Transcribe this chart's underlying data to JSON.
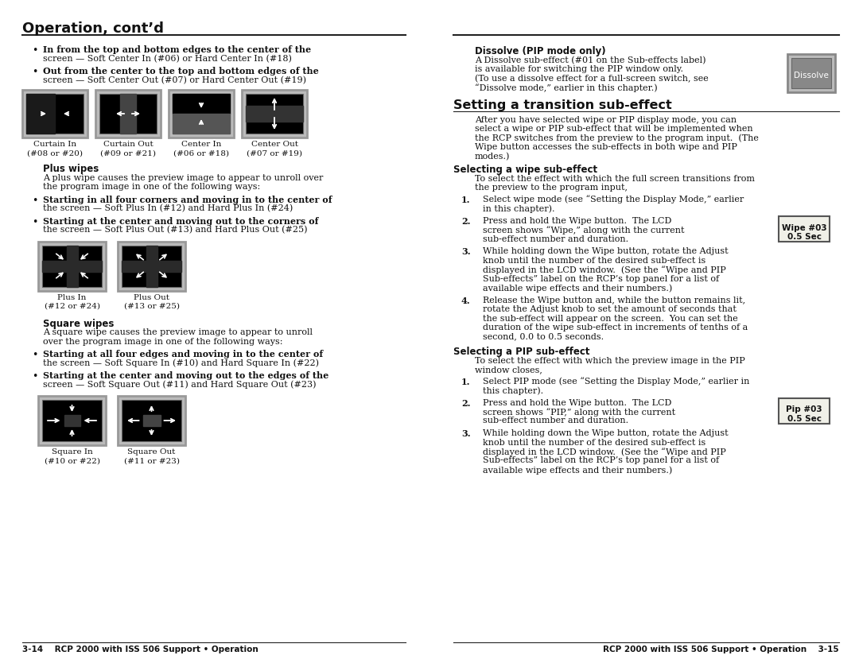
{
  "page_bg": "#ffffff",
  "left_header": "Operation, cont’d",
  "footer_left": "3-14    RCP 2000 with ISS 506 Support • Operation",
  "footer_right": "RCP 2000 with ISS 506 Support • Operation    3-15",
  "left_column": {
    "bullet1_bold": "In from the top and bottom edges to the center of the",
    "bullet1_normal": "screen — Soft Center In (#06) or Hard Center In (#18)",
    "bullet2_bold": "Out from the center to the top and bottom edges of the",
    "bullet2_normal": "screen — Soft Center Out (#07) or Hard Center Out (#19)",
    "wipe_images": [
      {
        "label": "Curtain In",
        "sub": "(#08 or #20)"
      },
      {
        "label": "Curtain Out",
        "sub": "(#09 or #21)"
      },
      {
        "label": "Center In",
        "sub": "(#06 or #18)"
      },
      {
        "label": "Center Out",
        "sub": "(#07 or #19)"
      }
    ],
    "plus_wipes_header": "Plus wipes",
    "plus_wipes_body1": "A plus wipe causes the preview image to appear to unroll over",
    "plus_wipes_body2": "the program image in one of the following ways:",
    "plus_bullet1_bold": "Starting in all four corners and moving in to the center of",
    "plus_bullet1_normal": "the screen — Soft Plus In (#12) and Hard Plus In (#24)",
    "plus_bullet2_bold": "Starting at the center and moving out to the corners of",
    "plus_bullet2_normal": "the screen — Soft Plus Out (#13) and Hard Plus Out (#25)",
    "plus_images": [
      {
        "label": "Plus In",
        "sub": "(#12 or #24)"
      },
      {
        "label": "Plus Out",
        "sub": "(#13 or #25)"
      }
    ],
    "square_wipes_header": "Square wipes",
    "square_body1": "A square wipe causes the preview image to appear to unroll",
    "square_body2": "over the program image in one of the following ways:",
    "sq_bullet1_bold": "Starting at all four edges and moving in to the center of",
    "sq_bullet1_normal": "the screen — Soft Square In (#10) and Hard Square In (#22)",
    "sq_bullet2_bold": "Starting at the center and moving out to the edges of the",
    "sq_bullet2_normal": "screen — Soft Square Out (#11) and Hard Square Out (#23)",
    "square_images": [
      {
        "label": "Square In",
        "sub": "(#10 or #22)"
      },
      {
        "label": "Square Out",
        "sub": "(#11 or #23)"
      }
    ]
  },
  "right_column": {
    "dissolve_header": "Dissolve (PIP mode only)",
    "dissolve_body": [
      "A Dissolve sub-effect (#01 on the Sub-effects label)",
      "is available for switching the PIP window only.",
      "(To use a dissolve effect for a full-screen switch, see",
      "“Dissolve mode,” earlier in this chapter.)"
    ],
    "dissolve_button_text": "Dissolve",
    "section_header": "Setting a transition sub-effect",
    "section_body": [
      "After you have selected wipe or PIP display mode, you can",
      "select a wipe or PIP sub-effect that will be implemented when",
      "the RCP switches from the preview to the program input.  (The",
      "Wipe button accesses the sub-effects in both wipe and PIP",
      "modes.)"
    ],
    "selecting_wipe_header": "Selecting a wipe sub-effect",
    "selecting_wipe_body": [
      "To select the effect with which the full screen transitions from",
      "the preview to the program input,"
    ],
    "wipe_steps": [
      [
        "Select wipe mode (see “Setting the Display Mode,” earlier",
        "in this chapter)."
      ],
      [
        "Press and hold the Wipe button.  The LCD",
        "screen shows “Wipe,” along with the current",
        "sub-effect number and duration."
      ],
      [
        "While holding down the Wipe button, rotate the Adjust",
        "knob until the number of the desired sub-effect is",
        "displayed in the LCD window.  (See the “Wipe and PIP",
        "Sub-effects” label on the RCP’s top panel for a list of",
        "available wipe effects and their numbers.)"
      ],
      [
        "Release the Wipe button and, while the button remains lit,",
        "rotate the Adjust knob to set the amount of seconds that",
        "the sub-effect will appear on the screen.  You can set the",
        "duration of the wipe sub-effect in increments of tenths of a",
        "second, 0.0 to 0.5 seconds."
      ]
    ],
    "wipe_lcd_line1": "Wipe #03",
    "wipe_lcd_line2": "0.5 Sec",
    "selecting_pip_header": "Selecting a PIP sub-effect",
    "selecting_pip_body": [
      "To select the effect with which the preview image in the PIP",
      "window closes,"
    ],
    "pip_steps": [
      [
        "Select PIP mode (see “Setting the Display Mode,” earlier in",
        "this chapter)."
      ],
      [
        "Press and hold the Wipe button.  The LCD",
        "screen shows “PIP,” along with the current",
        "sub-effect number and duration."
      ],
      [
        "While holding down the Wipe button, rotate the Adjust",
        "knob until the number of the desired sub-effect is",
        "displayed in the LCD window.  (See the “Wipe and PIP",
        "Sub-effects” label on the RCP’s top panel for a list of",
        "available wipe effects and their numbers.)"
      ]
    ],
    "pip_lcd_line1": "Pip #03",
    "pip_lcd_line2": "0.5 Sec"
  }
}
